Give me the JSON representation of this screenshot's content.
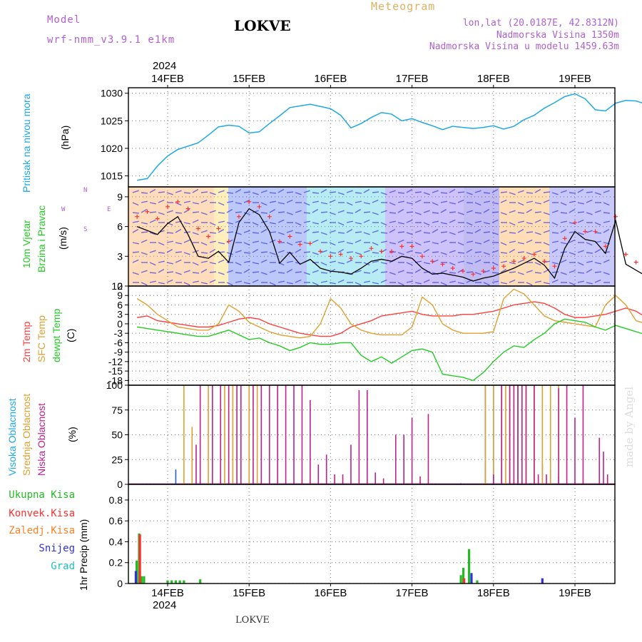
{
  "header": {
    "model_label": "Model",
    "model_name": "wrf-nmm_v3.9.1 e1km",
    "station": "LOKVE",
    "product": "Meteogram",
    "lonlat": "lon,lat (20.0187E, 42.8312N)",
    "elevation": "Nadmorska Visina 1350m",
    "model_elevation": "Nadmorska Visina u modelu 1459.63m"
  },
  "footer": {
    "station": "LOKVE",
    "signature": "made by Angel",
    "year": "2024"
  },
  "colors": {
    "pressure": "#1fa8e6",
    "wind_speed": "#000000",
    "gust": "#ff3030",
    "t2m": "#ff4040",
    "sfc": "#e0a030",
    "dewpt": "#22cc22",
    "high_cloud": "#2060e0",
    "mid_cloud": "#e0a030",
    "low_cloud": "#c0208a",
    "total_precip": "#22bb22",
    "conv_precip": "#ff3030",
    "frz_precip": "#ff8020",
    "snow": "#3030e0",
    "hail": "#20c0c0"
  },
  "chart_data": [
    {
      "type": "line",
      "panel": "pressure",
      "ylabel_rot": "Pritisak na nivou mora",
      "unit": "(hPa)",
      "x_start": "2024-02-13T15:00",
      "x_step_hours": 3,
      "ticks_x": [
        "14FEB",
        "15FEB",
        "16FEB",
        "17FEB",
        "18FEB",
        "19FEB"
      ],
      "ylim": [
        1013,
        1031
      ],
      "yticks": [
        1015,
        1020,
        1025,
        1030
      ],
      "series": [
        {
          "values": [
            1014.2,
            1014.5,
            1016.8,
            1018.6,
            1019.8,
            1020.4,
            1021.0,
            1022.4,
            1023.9,
            1024.2,
            1024.0,
            1022.8,
            1023.0,
            1024.5,
            1025.9,
            1027.4,
            1027.7,
            1028.0,
            1027.6,
            1027.2,
            1026.0,
            1023.7,
            1024.5,
            1025.6,
            1026.5,
            1026.2,
            1025.0,
            1025.4,
            1024.7,
            1024.1,
            1023.4,
            1024.0,
            1023.8,
            1023.6,
            1023.8,
            1024.1,
            1023.5,
            1024.0,
            1025.2,
            1026.0,
            1027.3,
            1028.3,
            1029.4,
            1029.9,
            1029.0,
            1027.0,
            1026.8,
            1028.2,
            1028.7,
            1028.6,
            1028.0,
            1028.3,
            1026.5,
            1023.1
          ]
        }
      ]
    },
    {
      "type": "line",
      "panel": "wind",
      "ylabel_rot1": "10m Vjetar",
      "ylabel_rot2": "Brzina i Pravac",
      "unit": "(m/s)",
      "legend_compass_n": "N",
      "legend_compass_e": "E",
      "legend_compass_w": "W",
      "legend_compass_s": "S",
      "ylim": [
        0,
        10
      ],
      "yticks": [
        0,
        3,
        6,
        9
      ],
      "series": [
        {
          "values": [
            6.0,
            5.6,
            5.2,
            6.3,
            7.0,
            5.2,
            3.0,
            2.8,
            3.5,
            2.4,
            6.4,
            7.8,
            7.2,
            5.5,
            2.3,
            3.4,
            2.2,
            2.7,
            1.8,
            1.5,
            1.4,
            1.2,
            1.8,
            2.5,
            2.7,
            2.5,
            3.0,
            2.8,
            1.8,
            1.2,
            1.3,
            1.1,
            0.9,
            0.5,
            0.8,
            1.0,
            1.4,
            1.8,
            2.3,
            2.8,
            2.1,
            0.8,
            3.8,
            5.5,
            4.7,
            4.5,
            3.3,
            6.6,
            2.2,
            1.6,
            1.0,
            1.3,
            0.9,
            1.7
          ]
        },
        {
          "values": [
            7.0,
            7.5,
            6.8,
            8.0,
            8.5,
            7.8,
            5.8,
            5.0,
            5.8,
            4.5,
            7.0,
            8.5,
            8.0,
            7.0,
            4.5,
            5.0,
            4.2,
            4.3,
            3.5,
            3.0,
            3.2,
            2.8,
            3.0,
            3.8,
            3.5,
            3.5,
            4.0,
            4.0,
            3.0,
            2.5,
            2.2,
            1.8,
            1.5,
            1.2,
            1.5,
            1.8,
            2.0,
            2.5,
            2.8,
            3.2,
            2.5,
            2.0,
            4.8,
            6.4,
            5.5,
            5.5,
            4.0,
            7.0,
            3.2,
            2.4,
            1.8,
            2.0,
            1.5,
            2.0
          ]
        }
      ]
    },
    {
      "type": "line",
      "panel": "temperature",
      "ylabel_rot1": "2m Temp",
      "ylabel_rot2": "SFC Temp",
      "ylabel_rot3": "dewpt Temp",
      "unit": "(C)",
      "ylim": [
        -19.5,
        12
      ],
      "yticks": [
        12,
        9,
        6,
        3,
        0,
        -3,
        -6,
        -9,
        -12,
        -15,
        -18
      ],
      "series": [
        {
          "name": "2m Temp",
          "values": [
            2.0,
            2.5,
            1.0,
            0.5,
            0.0,
            -0.5,
            -1.0,
            -1.0,
            -0.5,
            0.5,
            1.5,
            2.0,
            1.5,
            0.0,
            -1.0,
            -2.0,
            -3.0,
            -3.5,
            -4.0,
            -4.0,
            -3.0,
            -1.0,
            0.0,
            1.0,
            2.5,
            3.0,
            3.5,
            4.0,
            3.0,
            2.5,
            2.5,
            2.5,
            3.0,
            3.0,
            3.5,
            4.0,
            5.0,
            6.0,
            6.5,
            7.0,
            6.5,
            5.0,
            3.0,
            2.0,
            2.0,
            2.5,
            3.0,
            4.0,
            5.0,
            4.0,
            2.0,
            0.5,
            1.0,
            3.0
          ]
        },
        {
          "name": "SFC Temp",
          "values": [
            8.0,
            6.0,
            3.0,
            1.0,
            -1.0,
            -1.5,
            -2.0,
            -2.0,
            0.0,
            6.0,
            4.0,
            0.5,
            -1.0,
            -2.5,
            -3.5,
            -4.0,
            -4.5,
            -4.0,
            0.0,
            8.0,
            5.0,
            0.0,
            -2.0,
            -3.0,
            -3.5,
            -3.5,
            -3.5,
            -1.0,
            8.5,
            6.0,
            0.0,
            -2.0,
            -3.0,
            -3.0,
            -3.0,
            -2.5,
            8.0,
            11.0,
            9.5,
            6.0,
            2.5,
            1.0,
            0.5,
            0.0,
            -0.5,
            -1.0,
            6.0,
            9.0,
            6.0,
            1.0,
            0.0,
            -1.0,
            0.0,
            10.0
          ]
        },
        {
          "name": "dewpt Temp",
          "values": [
            -1.0,
            -1.5,
            -2.0,
            -2.5,
            -3.0,
            -3.5,
            -4.0,
            -4.0,
            -3.0,
            -2.0,
            -3.5,
            -5.0,
            -4.5,
            -6.0,
            -7.0,
            -8.5,
            -7.5,
            -6.0,
            -6.5,
            -6.5,
            -6.0,
            -6.0,
            -10.0,
            -12.0,
            -10.5,
            -12.5,
            -10.5,
            -8.5,
            -8.0,
            -9.0,
            -16.0,
            -16.5,
            -17.0,
            -18.0,
            -15.5,
            -12.0,
            -9.0,
            -7.0,
            -7.5,
            -5.0,
            -3.0,
            0.0,
            1.5,
            1.0,
            0.5,
            -1.0,
            -2.0,
            -0.5,
            -1.5,
            -2.5,
            -3.5,
            -2.5,
            -3.0,
            -5.5
          ]
        }
      ]
    },
    {
      "type": "bar",
      "panel": "cloud",
      "ylabel_rot1": "Visoka Oblacnost",
      "ylabel_rot2": "Srednja Oblacnost",
      "ylabel_rot3": "Niska Oblacnost",
      "unit": "(%)",
      "ylim": [
        0,
        100
      ],
      "yticks": [
        0,
        25,
        50,
        75,
        100
      ],
      "series": [
        {
          "name": "Visoka Oblacnost",
          "points": [
            [
              0.6,
              15
            ],
            [
              0.9,
              3
            ],
            [
              4.1,
              1
            ],
            [
              4.4,
              100
            ],
            [
              4.5,
              100
            ],
            [
              4.6,
              100
            ],
            [
              4.7,
              100
            ],
            [
              4.8,
              100
            ],
            [
              4.95,
              1
            ],
            [
              5.1,
              20
            ],
            [
              5.2,
              15
            ],
            [
              5.3,
              8
            ]
          ]
        },
        {
          "name": "Srednja Oblacnost",
          "points": [
            [
              0.7,
              100
            ],
            [
              0.8,
              58
            ],
            [
              1.0,
              100
            ],
            [
              1.2,
              100
            ],
            [
              1.3,
              100
            ],
            [
              1.5,
              100
            ],
            [
              1.6,
              100
            ],
            [
              4.4,
              100
            ],
            [
              4.5,
              100
            ],
            [
              4.6,
              100
            ],
            [
              4.65,
              100
            ],
            [
              4.7,
              100
            ],
            [
              4.75,
              100
            ],
            [
              4.8,
              100
            ],
            [
              4.85,
              100
            ],
            [
              4.9,
              100
            ],
            [
              5.0,
              100
            ],
            [
              5.1,
              100
            ],
            [
              5.2,
              100
            ],
            [
              5.3,
              100
            ]
          ]
        },
        {
          "name": "Niska Oblacnost",
          "points": [
            [
              0.85,
              40
            ],
            [
              0.9,
              100
            ],
            [
              1.05,
              100
            ],
            [
              1.15,
              100
            ],
            [
              1.25,
              100
            ],
            [
              1.35,
              100
            ],
            [
              1.4,
              100
            ],
            [
              1.55,
              100
            ],
            [
              1.65,
              100
            ],
            [
              1.75,
              100
            ],
            [
              1.85,
              100
            ],
            [
              1.95,
              100
            ],
            [
              2.05,
              100
            ],
            [
              2.15,
              100
            ],
            [
              2.25,
              85
            ],
            [
              2.35,
              20
            ],
            [
              2.45,
              30
            ],
            [
              2.55,
              10
            ],
            [
              2.65,
              10
            ],
            [
              2.75,
              40
            ],
            [
              2.85,
              95
            ],
            [
              2.95,
              95
            ],
            [
              3.05,
              12
            ],
            [
              3.15,
              6
            ],
            [
              3.3,
              50
            ],
            [
              3.4,
              50
            ],
            [
              3.5,
              67
            ],
            [
              3.6,
              8
            ],
            [
              3.7,
              71
            ],
            [
              4.5,
              10
            ],
            [
              4.6,
              100
            ],
            [
              4.7,
              100
            ],
            [
              4.75,
              100
            ],
            [
              4.8,
              100
            ],
            [
              4.85,
              100
            ],
            [
              4.9,
              100
            ],
            [
              5.0,
              100
            ],
            [
              5.05,
              10
            ],
            [
              5.15,
              10
            ],
            [
              5.3,
              97
            ],
            [
              5.4,
              100
            ],
            [
              5.5,
              67
            ],
            [
              5.6,
              100
            ],
            [
              5.8,
              47
            ],
            [
              5.85,
              33
            ],
            [
              5.9,
              10
            ]
          ]
        }
      ]
    },
    {
      "type": "bar",
      "panel": "precip",
      "ylabel_rot": "1hr Precip (mm)",
      "legend": [
        "Ukupna Kisa",
        "Konvek.Kisa",
        "Zaledj.Kisa",
        "Snijeg",
        "Grad"
      ],
      "ylim": [
        0,
        0.95
      ],
      "yticks": [
        0,
        0.2,
        0.4,
        0.6,
        0.8
      ],
      "series": [
        {
          "name": "Ukupna Kisa",
          "points": [
            [
              0.12,
              0.22
            ],
            [
              0.15,
              0.48
            ],
            [
              0.18,
              0.07
            ],
            [
              0.21,
              0.07
            ],
            [
              0.5,
              0.03
            ],
            [
              0.55,
              0.03
            ],
            [
              0.6,
              0.03
            ],
            [
              0.65,
              0.03
            ],
            [
              0.7,
              0.03
            ],
            [
              0.9,
              0.04
            ],
            [
              4.1,
              0.08
            ],
            [
              4.13,
              0.15
            ],
            [
              4.2,
              0.33
            ],
            [
              4.3,
              0.03
            ]
          ]
        },
        {
          "name": "Konvek.Kisa",
          "points": [
            [
              0.16,
              0.47
            ],
            [
              4.14,
              0.05
            ]
          ]
        },
        {
          "name": "Snijeg",
          "points": [
            [
              0.11,
              0.12
            ],
            [
              4.23,
              0.1
            ],
            [
              5.1,
              0.05
            ]
          ]
        }
      ]
    }
  ]
}
